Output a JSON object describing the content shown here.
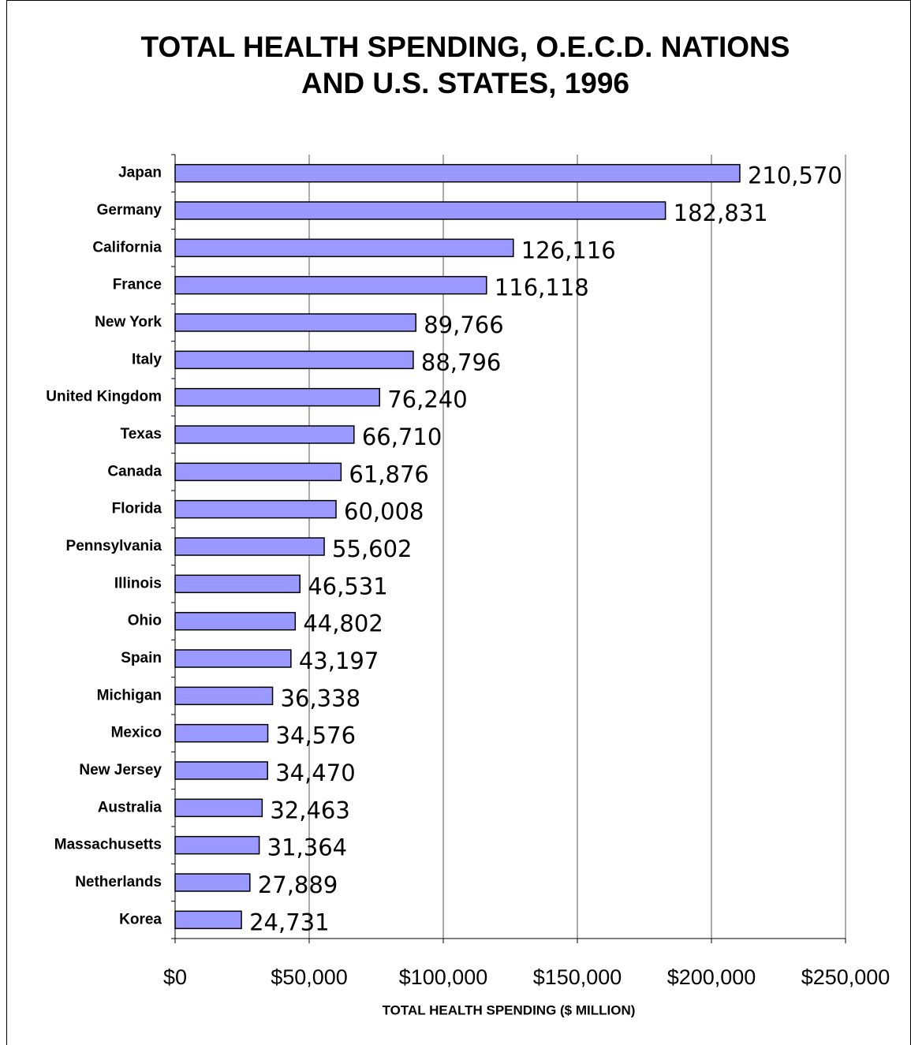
{
  "chart_data": {
    "type": "barh",
    "title": [
      "TOTAL HEALTH SPENDING, O.E.C.D. NATIONS",
      "AND U.S. STATES, 1996"
    ],
    "xlabel": "TOTAL HEALTH SPENDING ($ MILLION)",
    "categories": [
      "Japan",
      "Germany",
      "California",
      "France",
      "New York",
      "Italy",
      "United Kingdom",
      "Texas",
      "Canada",
      "Florida",
      "Pennsylvania",
      "Illinois",
      "Ohio",
      "Spain",
      "Michigan",
      "Mexico",
      "New Jersey",
      "Australia",
      "Massachusetts",
      "Netherlands",
      "Korea"
    ],
    "values": [
      210570,
      182831,
      126116,
      116118,
      89766,
      88796,
      76240,
      66710,
      61876,
      60008,
      55602,
      46531,
      44802,
      43197,
      36338,
      34576,
      34470,
      32463,
      31364,
      27889,
      24731
    ],
    "value_labels": [
      "210,570",
      "182,831",
      "126,116",
      "116,118",
      "89,766",
      "88,796",
      "76,240",
      "66,710",
      "61,876",
      "60,008",
      "55,602",
      "46,531",
      "44,802",
      "43,197",
      "36,338",
      "34,576",
      "34,470",
      "32,463",
      "31,364",
      "27,889",
      "24,731"
    ],
    "color": "#9999ff",
    "xlim": [
      0,
      250000
    ],
    "xticks": [
      {
        "value": 0,
        "label": "$0"
      },
      {
        "value": 50000,
        "label": "$50,000"
      },
      {
        "value": 100000,
        "label": "$100,000"
      },
      {
        "value": 150000,
        "label": "$150,000"
      },
      {
        "value": 200000,
        "label": "$200,000"
      },
      {
        "value": 250000,
        "label": "$250,000"
      }
    ],
    "grid": true
  }
}
